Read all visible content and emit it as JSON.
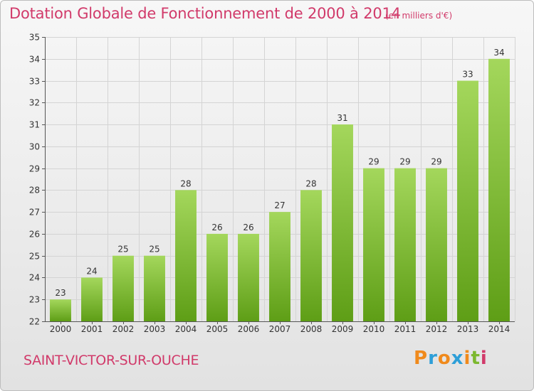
{
  "header": {
    "title": "Dotation Globale de Fonctionnement de 2000 à 2014",
    "subtitle": "(en milliers d'€)"
  },
  "footer": {
    "commune": "SAINT-VICTOR-SUR-OUCHE",
    "logo_text": "Proxiti",
    "logo_colors": [
      "#f08a1c",
      "#2e9fd8",
      "#f08a1c",
      "#2e9fd8",
      "#f08a1c",
      "#7cb82f",
      "#d13a6a"
    ]
  },
  "colors": {
    "title": "#d13a6a",
    "bar_top": "#a4d75c",
    "bar_bottom": "#5e9e16"
  },
  "chart_data": {
    "type": "bar",
    "title": "Dotation Globale de Fonctionnement de 2000 à 2014",
    "subtitle": "(en milliers d'€)",
    "categories": [
      "2000",
      "2001",
      "2002",
      "2003",
      "2004",
      "2005",
      "2006",
      "2007",
      "2008",
      "2009",
      "2010",
      "2011",
      "2012",
      "2013",
      "2014"
    ],
    "values": [
      23,
      24,
      25,
      25,
      28,
      26,
      26,
      27,
      28,
      31,
      29,
      29,
      29,
      33,
      34
    ],
    "ylim": [
      22,
      35
    ],
    "yticks": [
      22,
      23,
      24,
      25,
      26,
      27,
      28,
      29,
      30,
      31,
      32,
      33,
      34,
      35
    ],
    "xlabel": "",
    "ylabel": "",
    "grid": true,
    "data_labels": true
  }
}
